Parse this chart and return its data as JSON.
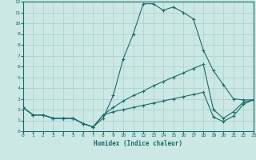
{
  "xlabel": "Humidex (Indice chaleur)",
  "background_color": "#cce8e4",
  "grid_color": "#aacfcb",
  "line_color": "#1a6b6b",
  "xlim": [
    0,
    23
  ],
  "ylim": [
    0,
    12
  ],
  "xticks": [
    0,
    1,
    2,
    3,
    4,
    5,
    6,
    7,
    8,
    9,
    10,
    11,
    12,
    13,
    14,
    15,
    16,
    17,
    18,
    19,
    20,
    21,
    22,
    23
  ],
  "yticks": [
    0,
    1,
    2,
    3,
    4,
    5,
    6,
    7,
    8,
    9,
    10,
    11,
    12
  ],
  "line1_x": [
    0,
    1,
    2,
    3,
    4,
    5,
    6,
    7,
    8,
    9,
    10,
    11,
    12,
    13,
    14,
    15,
    16,
    17,
    18,
    19,
    20,
    21,
    22,
    23
  ],
  "line1_y": [
    2.2,
    1.5,
    1.5,
    1.2,
    1.2,
    1.2,
    0.7,
    0.4,
    1.2,
    3.3,
    6.7,
    9.0,
    11.8,
    11.8,
    11.2,
    11.5,
    11.0,
    10.4,
    7.5,
    5.6,
    4.3,
    3.0,
    2.9,
    2.9
  ],
  "line2_x": [
    0,
    1,
    2,
    3,
    4,
    5,
    6,
    7,
    8,
    9,
    10,
    11,
    12,
    13,
    14,
    15,
    16,
    17,
    18,
    19,
    20,
    21,
    22,
    23
  ],
  "line2_y": [
    2.2,
    1.5,
    1.5,
    1.2,
    1.2,
    1.2,
    0.7,
    0.4,
    1.5,
    2.2,
    2.8,
    3.3,
    3.7,
    4.2,
    4.6,
    5.0,
    5.4,
    5.8,
    6.2,
    2.0,
    1.2,
    1.8,
    2.7,
    2.9
  ],
  "line3_x": [
    0,
    1,
    2,
    3,
    4,
    5,
    6,
    7,
    8,
    9,
    10,
    11,
    12,
    13,
    14,
    15,
    16,
    17,
    18,
    19,
    20,
    21,
    22,
    23
  ],
  "line3_y": [
    2.2,
    1.5,
    1.5,
    1.2,
    1.2,
    1.2,
    0.7,
    0.4,
    1.5,
    1.8,
    2.0,
    2.2,
    2.4,
    2.6,
    2.8,
    3.0,
    3.2,
    3.4,
    3.6,
    1.3,
    0.9,
    1.4,
    2.5,
    2.9
  ]
}
